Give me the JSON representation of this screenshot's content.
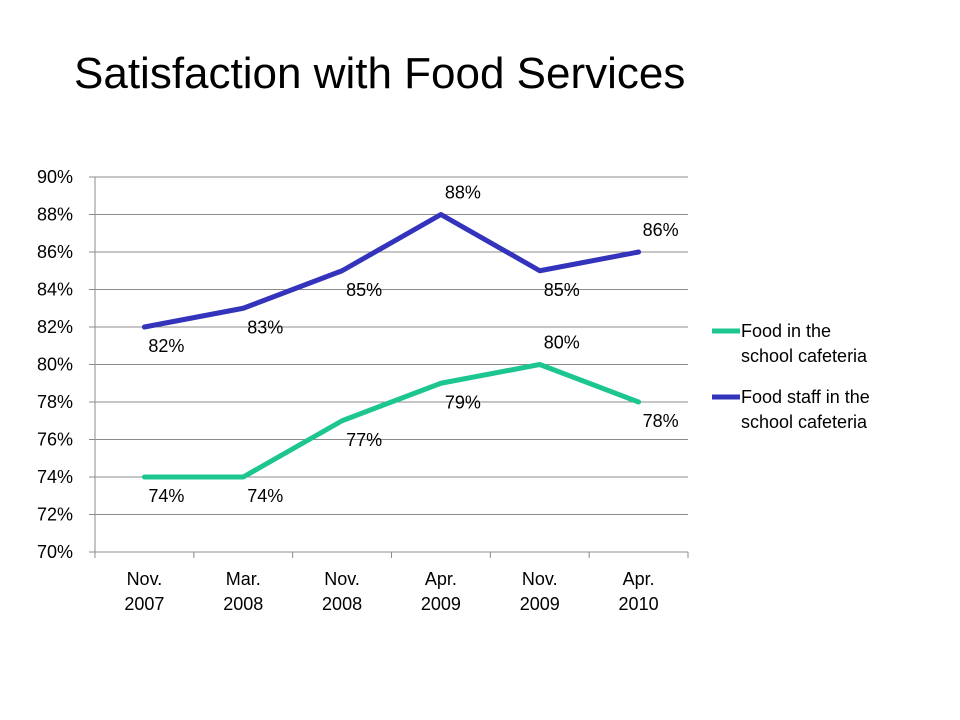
{
  "slide": {
    "title": "Satisfaction with Food Services"
  },
  "chart_data": {
    "type": "line",
    "title": "Satisfaction with Food Services",
    "xlabel": "",
    "ylabel": "",
    "categories": [
      [
        "Nov.",
        "2007"
      ],
      [
        "Mar.",
        "2008"
      ],
      [
        "Nov.",
        "2008"
      ],
      [
        "Apr.",
        "2009"
      ],
      [
        "Nov.",
        "2009"
      ],
      [
        "Apr.",
        "2010"
      ]
    ],
    "ylim": [
      70,
      90
    ],
    "yticks": [
      70,
      72,
      74,
      76,
      78,
      80,
      82,
      84,
      86,
      88,
      90
    ],
    "y_tick_format": "percent",
    "grid": "horizontal",
    "legend_position": "right",
    "series": [
      {
        "name": [
          "Food in the",
          "school cafeteria"
        ],
        "color": "#1DC690",
        "values": [
          74,
          74,
          77,
          79,
          80,
          78
        ],
        "labels": [
          "74%",
          "74%",
          "77%",
          "79%",
          "80%",
          "78%"
        ],
        "label_position": [
          "below",
          "below",
          "below",
          "below",
          "above",
          "below"
        ]
      },
      {
        "name": [
          "Food staff in the",
          "school cafeteria"
        ],
        "color": "#3333BB",
        "values": [
          82,
          83,
          85,
          88,
          85,
          86
        ],
        "labels": [
          "82%",
          "83%",
          "85%",
          "88%",
          "85%",
          "86%"
        ],
        "label_position": [
          "below",
          "below",
          "below",
          "above",
          "below",
          "above"
        ]
      }
    ]
  }
}
